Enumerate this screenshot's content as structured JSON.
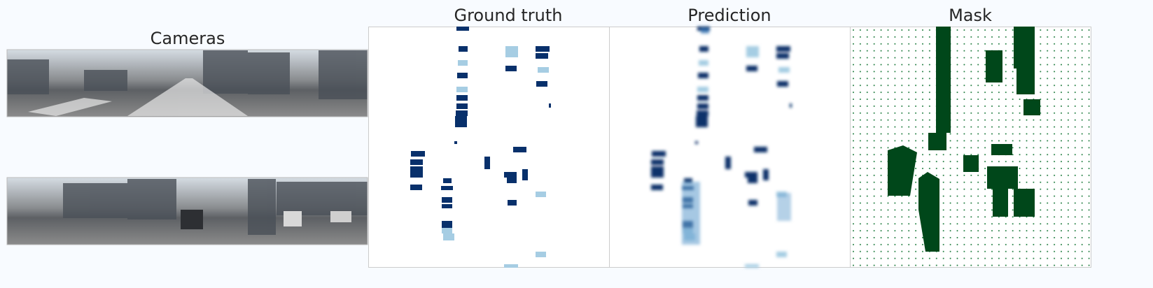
{
  "titles": {
    "cameras": "Cameras",
    "ground_truth": "Ground truth",
    "prediction": "Prediction",
    "mask": "Mask"
  }
}
